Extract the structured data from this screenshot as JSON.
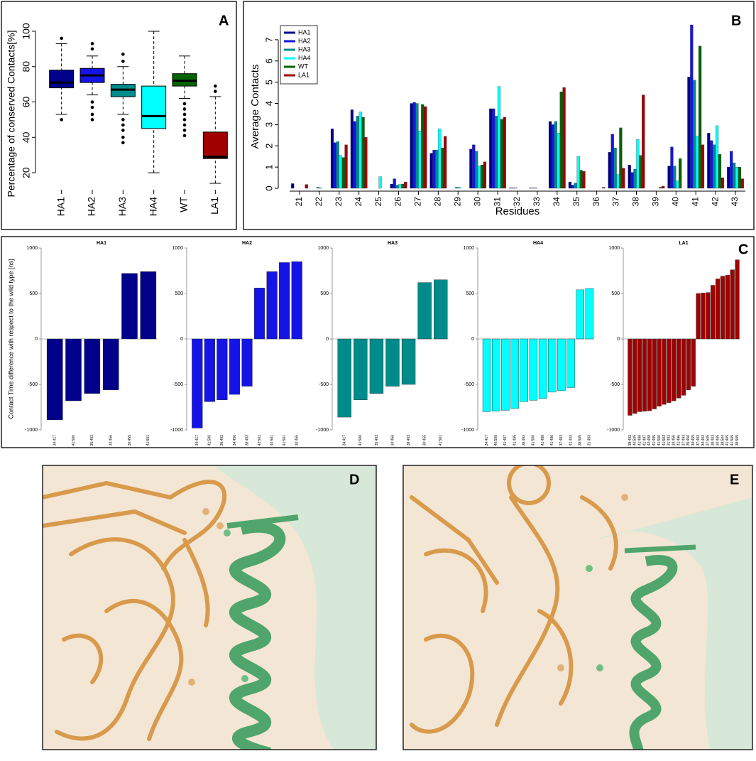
{
  "chart_data": [
    {
      "type": "box",
      "panel_label": "A",
      "ylabel": "Percentage of conserved Contacts[%]",
      "categories": [
        "HA1",
        "HA2",
        "HA3",
        "HA4",
        "WT",
        "LA1"
      ],
      "colors": [
        "#00008b",
        "#1414e6",
        "#008b8b",
        "#00ffff",
        "#006400",
        "#a00000"
      ],
      "stats": [
        {
          "min": 53,
          "q1": 68,
          "median": 71,
          "q3": 78,
          "max": 93,
          "outliers": [
            96,
            50
          ]
        },
        {
          "min": 64,
          "q1": 71,
          "median": 75,
          "q3": 79,
          "max": 86,
          "outliers": [
            90,
            93,
            60,
            57,
            53,
            50
          ]
        },
        {
          "min": 53,
          "q1": 63,
          "median": 67,
          "q3": 70,
          "max": 80,
          "outliers": [
            83,
            87,
            50,
            47,
            44,
            40,
            37
          ]
        },
        {
          "min": 20,
          "q1": 45,
          "median": 52,
          "q3": 69,
          "max": 100,
          "outliers": []
        },
        {
          "min": 62,
          "q1": 69,
          "median": 72,
          "q3": 76,
          "max": 86,
          "outliers": [
            59,
            56,
            53,
            50,
            47,
            44,
            41
          ]
        },
        {
          "min": 14,
          "q1": 28,
          "median": 29,
          "q3": 43,
          "max": 63,
          "outliers": [
            66,
            69
          ]
        }
      ],
      "ylim": [
        12,
        104
      ],
      "yticks": [
        20,
        40,
        60,
        80,
        100
      ]
    },
    {
      "type": "groupedbar",
      "panel_label": "B",
      "xlabel": "Residues",
      "ylabel": "Average Contacts",
      "legend": "upper left",
      "categories": [
        "21",
        "22",
        "23",
        "24",
        "25",
        "26",
        "27",
        "28",
        "29",
        "30",
        "31",
        "32",
        "33",
        "34",
        "35",
        "36",
        "37",
        "38",
        "39",
        "40",
        "41",
        "42",
        "43"
      ],
      "series": [
        {
          "name": "HA1",
          "color": "#00008b",
          "values": [
            0.22,
            0,
            2.8,
            3.7,
            0,
            0.2,
            4.0,
            1.65,
            0,
            1.85,
            3.75,
            0.02,
            0.02,
            3.15,
            0.3,
            0,
            1.7,
            1.1,
            0,
            1.05,
            5.25,
            2.6,
            1.0
          ]
        },
        {
          "name": "HA2",
          "color": "#1414e6",
          "values": [
            0,
            0,
            2.15,
            3.15,
            0,
            0.45,
            4.05,
            1.8,
            0,
            2.05,
            3.75,
            0.02,
            0.02,
            3.0,
            0.15,
            0,
            2.55,
            0.75,
            0,
            1.95,
            7.7,
            2.25,
            1.75
          ]
        },
        {
          "name": "HA3",
          "color": "#008b8b",
          "values": [
            0,
            0.05,
            2.2,
            3.4,
            0,
            0.15,
            4.0,
            1.8,
            0.05,
            1.75,
            3.4,
            0.02,
            0.02,
            3.15,
            0.25,
            0,
            1.9,
            0.9,
            0,
            1.05,
            5.1,
            2.05,
            1.2
          ]
        },
        {
          "name": "HA4",
          "color": "#00ffff",
          "values": [
            0,
            0.03,
            1.55,
            3.6,
            0.55,
            0.2,
            2.7,
            2.8,
            0.05,
            1.05,
            4.8,
            0,
            0,
            2.6,
            1.5,
            0,
            0.65,
            2.3,
            0,
            0.35,
            2.45,
            2.95,
            1.0
          ]
        },
        {
          "name": "WT",
          "color": "#006400",
          "values": [
            0,
            0,
            1.45,
            3.35,
            0,
            0.2,
            3.95,
            1.9,
            0,
            1.1,
            3.25,
            0,
            0,
            4.55,
            0.85,
            0,
            2.85,
            1.55,
            0.05,
            1.4,
            6.7,
            1.6,
            1.0
          ]
        },
        {
          "name": "LA1",
          "color": "#a00000",
          "values": [
            0.18,
            0,
            2.05,
            2.4,
            0,
            0.3,
            3.85,
            2.45,
            0,
            1.25,
            3.35,
            0,
            0,
            4.75,
            0.8,
            0.05,
            0.95,
            4.4,
            0.1,
            0,
            2.05,
            0.5,
            0.45
          ]
        }
      ],
      "ylim": [
        0,
        7.8
      ],
      "yticks": [
        0,
        1,
        2,
        3,
        4,
        5,
        6,
        7
      ]
    },
    {
      "type": "barpanels",
      "panel_label": "C",
      "ylabel": "Contact Time difference with respect to the wild type [ns]",
      "ylim": [
        -1000,
        1000
      ],
      "yticks": [
        -1000,
        -500,
        0,
        500,
        1000
      ],
      "panels": [
        {
          "title": "HA1",
          "color": "#00008b",
          "categories": [
            "34:417",
            "41:500",
            "35:493",
            "34:456",
            "30:455",
            "41:501"
          ],
          "values": [
            -890,
            -680,
            -600,
            -560,
            720,
            740
          ]
        },
        {
          "title": "HA2",
          "color": "#1414e6",
          "categories": [
            "34:417",
            "41:500",
            "35:493",
            "34:456",
            "38:493",
            "42:501",
            "40:501",
            "41:501",
            "30:455"
          ],
          "values": [
            -980,
            -690,
            -670,
            -610,
            -520,
            560,
            740,
            840,
            850
          ]
        },
        {
          "title": "HA3",
          "color": "#008b8b",
          "categories": [
            "34:417",
            "41:500",
            "35:493",
            "34:456",
            "38:493",
            "30:455",
            "41:501"
          ],
          "values": [
            -860,
            -670,
            -600,
            -520,
            -500,
            620,
            650
          ]
        },
        {
          "title": "HA4",
          "color": "#00ffff",
          "categories": [
            "34:417",
            "40:505",
            "41:497",
            "41:495",
            "38:493",
            "41:500",
            "41:498",
            "41:496",
            "37:493",
            "41:403",
            "38:505",
            "31:493"
          ],
          "values": [
            -800,
            -795,
            -785,
            -765,
            -690,
            -675,
            -655,
            -585,
            -570,
            -535,
            540,
            555
          ]
        },
        {
          "title": "LA1",
          "color": "#a00000",
          "categories": [
            "38:493",
            "40:505",
            "41:498",
            "41:497",
            "42:498",
            "41:495",
            "41:500",
            "41:503",
            "31:493",
            "34:456",
            "41:496",
            "37:493",
            "35:456",
            "30:455",
            "37:403",
            "34:403",
            "37:505",
            "38:403",
            "34:405",
            "38:504",
            "41:405",
            "41:505",
            "38:505"
          ],
          "values": [
            -840,
            -820,
            -800,
            -795,
            -790,
            -770,
            -740,
            -720,
            -700,
            -680,
            -650,
            -620,
            -560,
            -520,
            500,
            505,
            510,
            590,
            660,
            690,
            700,
            760,
            870
          ]
        }
      ]
    }
  ],
  "images": [
    {
      "panel_label": "D"
    },
    {
      "panel_label": "E"
    }
  ]
}
